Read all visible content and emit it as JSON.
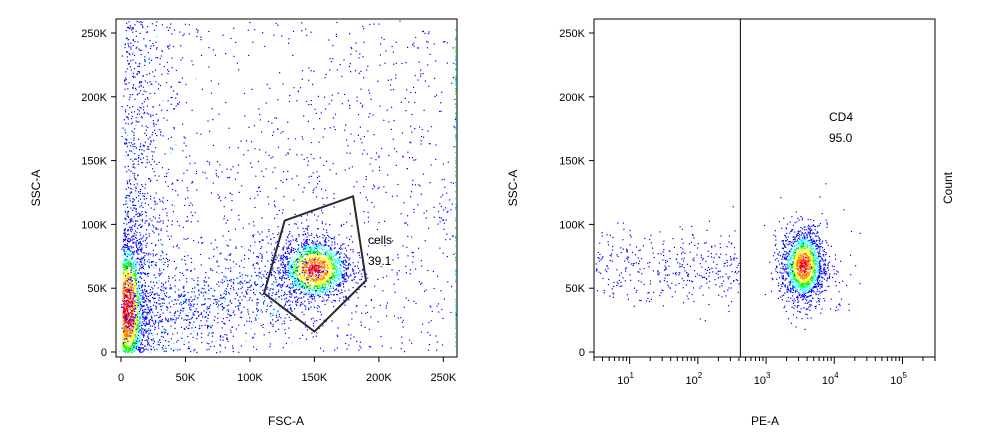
{
  "chart_data": [
    {
      "type": "scatter",
      "xlabel": "FSC-A",
      "ylabel": "SSC-A",
      "xlim": [
        0,
        262144
      ],
      "ylim": [
        0,
        262144
      ],
      "x_ticks": [
        {
          "value": 0,
          "label": "0"
        },
        {
          "value": 50000,
          "label": "50K"
        },
        {
          "value": 100000,
          "label": "100K"
        },
        {
          "value": 150000,
          "label": "150K"
        },
        {
          "value": 200000,
          "label": "200K"
        },
        {
          "value": 250000,
          "label": "250K"
        }
      ],
      "y_ticks": [
        {
          "value": 0,
          "label": "0"
        },
        {
          "value": 50000,
          "label": "50K"
        },
        {
          "value": 100000,
          "label": "100K"
        },
        {
          "value": 150000,
          "label": "150K"
        },
        {
          "value": 200000,
          "label": "200K"
        },
        {
          "value": 250000,
          "label": "250K"
        }
      ],
      "display": "pseudocolor density dot plot",
      "populations": [
        {
          "x_center": 5000,
          "y_center": 35000,
          "density": "highest"
        },
        {
          "x_center": 150000,
          "y_center": 65000,
          "density": "high"
        }
      ],
      "gate": {
        "name": "cells",
        "value": "39.1",
        "shape": "polygon",
        "vertices": [
          [
            127000,
            103000
          ],
          [
            180000,
            122000
          ],
          [
            190000,
            56000
          ],
          [
            150000,
            16000
          ],
          [
            111000,
            46000
          ]
        ]
      },
      "colors": {
        "low": "#0000ff",
        "mid": "#00ffff",
        "mid2": "#00ff00",
        "high": "#ffff00",
        "peak": "#ff0000"
      }
    },
    {
      "type": "scatter",
      "xlabel": "PE-A",
      "ylabel": "SSC-A",
      "right_label": "Count",
      "x_scale": "log",
      "xlim": [
        3,
        300000
      ],
      "ylim": [
        0,
        262144
      ],
      "x_ticks": [
        {
          "value": 10,
          "base": "10",
          "exp": "1"
        },
        {
          "value": 100,
          "base": "10",
          "exp": "2"
        },
        {
          "value": 1000,
          "base": "10",
          "exp": "3"
        },
        {
          "value": 10000,
          "base": "10",
          "exp": "4"
        },
        {
          "value": 100000,
          "base": "10",
          "exp": "5"
        }
      ],
      "y_ticks": [
        {
          "value": 0,
          "label": "0"
        },
        {
          "value": 50000,
          "label": "50K"
        },
        {
          "value": 100000,
          "label": "100K"
        },
        {
          "value": 150000,
          "label": "150K"
        },
        {
          "value": 200000,
          "label": "200K"
        },
        {
          "value": 250000,
          "label": "250K"
        }
      ],
      "display": "pseudocolor density dot plot",
      "populations": [
        {
          "x_center": 3500,
          "y_center": 68000,
          "density": "high"
        },
        {
          "x_center": 40,
          "y_center": 68000,
          "density": "low"
        }
      ],
      "gate": {
        "name": "CD4",
        "value": "95.0",
        "shape": "vertical line",
        "x_threshold": 420
      },
      "colors": {
        "low": "#0000ff",
        "mid": "#00ffff",
        "mid2": "#00ff00",
        "high": "#ffff00",
        "peak": "#ff0000"
      }
    }
  ]
}
